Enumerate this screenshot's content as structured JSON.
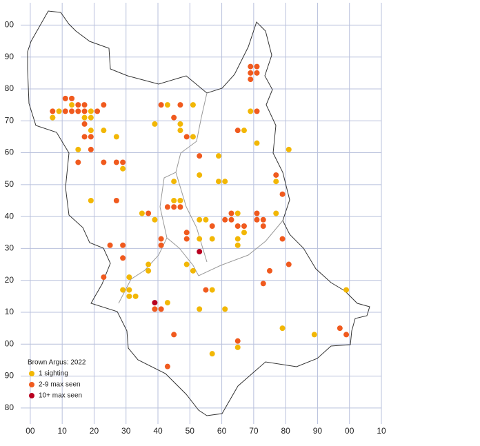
{
  "chart_data": {
    "type": "scatter",
    "legend_title": "Brown Argus:  2022",
    "xlim": [
      -3,
      110
    ],
    "ylim": [
      -25,
      107
    ],
    "xticks": [
      {
        "value": 0,
        "label": "00"
      },
      10,
      20,
      30,
      40,
      50,
      60,
      70,
      80,
      90,
      {
        "value": 100,
        "label": "00"
      },
      {
        "value": 110,
        "label": "10"
      }
    ],
    "yticks": [
      {
        "value": 100,
        "label": "00"
      },
      90,
      80,
      70,
      60,
      50,
      40,
      30,
      20,
      10,
      {
        "value": 0,
        "label": "00"
      },
      {
        "value": -10,
        "label": "90"
      },
      {
        "value": -20,
        "label": "80"
      }
    ],
    "grid": true,
    "series": [
      {
        "name": "1 sighting",
        "color": "#f2b705",
        "x": [
          7,
          9,
          13,
          19,
          7,
          17,
          19,
          19,
          23,
          27,
          15,
          29,
          19,
          31,
          29,
          31,
          31,
          33,
          37,
          37,
          35,
          39,
          45,
          47,
          53,
          57,
          53,
          55,
          65,
          77,
          67,
          65,
          65,
          49,
          51,
          57,
          77,
          81,
          71,
          67,
          69,
          43,
          51,
          39,
          47,
          47,
          51,
          59,
          53,
          45,
          59,
          61,
          43,
          53,
          61,
          65,
          57,
          79,
          89,
          99
        ],
        "values": [
          71,
          73,
          75,
          73,
          71,
          71,
          71,
          67,
          67,
          65,
          61,
          55,
          45,
          21,
          17,
          17,
          15,
          15,
          25,
          23,
          41,
          39,
          45,
          45,
          33,
          33,
          39,
          39,
          41,
          41,
          35,
          33,
          31,
          25,
          23,
          17,
          51,
          61,
          63,
          67,
          73,
          75,
          75,
          69,
          69,
          67,
          65,
          59,
          53,
          51,
          51,
          51,
          13,
          11,
          11,
          -1,
          -3,
          5,
          3,
          17
        ]
      },
      {
        "name": "2-9 max seen",
        "color": "#f05a1e",
        "x": [
          11,
          13,
          15,
          17,
          23,
          7,
          11,
          13,
          15,
          17,
          21,
          17,
          17,
          19,
          19,
          15,
          23,
          27,
          29,
          27,
          25,
          29,
          29,
          23,
          37,
          43,
          45,
          47,
          41,
          49,
          41,
          49,
          61,
          63,
          71,
          73,
          63,
          71,
          57,
          65,
          67,
          73,
          75,
          55,
          73,
          81,
          79,
          79,
          77,
          65,
          71,
          69,
          69,
          71,
          69,
          71,
          41,
          47,
          45,
          49,
          53,
          39,
          41,
          45,
          65,
          43,
          97,
          99
        ],
        "values": [
          77,
          77,
          75,
          75,
          75,
          73,
          73,
          73,
          73,
          73,
          73,
          69,
          65,
          65,
          61,
          57,
          57,
          57,
          57,
          45,
          31,
          31,
          27,
          21,
          41,
          43,
          43,
          43,
          33,
          33,
          31,
          35,
          39,
          39,
          39,
          39,
          41,
          41,
          37,
          37,
          37,
          37,
          23,
          17,
          19,
          25,
          33,
          47,
          53,
          67,
          73,
          83,
          85,
          85,
          87,
          87,
          75,
          75,
          71,
          65,
          59,
          11,
          11,
          3,
          1,
          -7,
          5,
          3
        ]
      },
      {
        "name": "10+ max seen",
        "color": "#b8001f",
        "x": [
          53,
          39
        ],
        "values": [
          29,
          13
        ]
      }
    ]
  }
}
